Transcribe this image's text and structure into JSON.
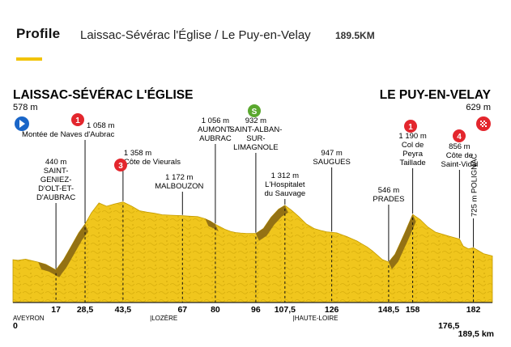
{
  "header": {
    "title": "Profile",
    "route": "Laissac-Sévérac l'Église / Le Puy-en-Velay",
    "distance": "189.5KM"
  },
  "chart_data": {
    "type": "area",
    "start": {
      "name": "LAISSAC-SÉVÉRAC L'ÉGLISE",
      "elevation": "578 m"
    },
    "finish": {
      "name": "LE PUY-EN-VELAY",
      "elevation": "629 m"
    },
    "profile": {
      "x": [
        0,
        2,
        5,
        8,
        10,
        13,
        17,
        20,
        23,
        26,
        28.5,
        31,
        34,
        37,
        40,
        43.5,
        47,
        50,
        53,
        56,
        59,
        62,
        65,
        67,
        70,
        73,
        76,
        78,
        80,
        82,
        84,
        86,
        88,
        90,
        92,
        94,
        96,
        99,
        102,
        105,
        107.5,
        110,
        113,
        116,
        119,
        122,
        124,
        126,
        128,
        130,
        132,
        134,
        136,
        138,
        140,
        142,
        144,
        146,
        148.5,
        151,
        153,
        155,
        158,
        161,
        164,
        167,
        170,
        172,
        174,
        176.5,
        178,
        180,
        182,
        184,
        186,
        189.5
      ],
      "y": [
        578,
        570,
        585,
        560,
        545,
        515,
        440,
        580,
        760,
        940,
        1058,
        1210,
        1345,
        1300,
        1330,
        1358,
        1300,
        1240,
        1220,
        1205,
        1185,
        1180,
        1175,
        1172,
        1165,
        1160,
        1130,
        1100,
        1056,
        1020,
        985,
        960,
        945,
        938,
        934,
        933,
        932,
        1000,
        1150,
        1260,
        1312,
        1250,
        1160,
        1060,
        1000,
        970,
        955,
        947,
        940,
        915,
        890,
        860,
        830,
        790,
        750,
        700,
        640,
        580,
        546,
        650,
        800,
        950,
        1190,
        1120,
        1020,
        950,
        920,
        900,
        880,
        856,
        760,
        725,
        740,
        700,
        660,
        629
      ]
    },
    "ylim": [
      0,
      1420
    ],
    "xlim": [
      0,
      189.5
    ],
    "summits": [
      {
        "km": 17,
        "elev": 440,
        "name": "SAINT-GENIEZ-D'OLT-ET-D'AUBRAC",
        "lines": [
          "440 m",
          "SAINT-",
          "GENIEZ-",
          "D'OLT-ET-",
          "D'AUBRAC"
        ]
      },
      {
        "km": 28.5,
        "elev": 1058,
        "name": "Montée de Naves d'Aubrac",
        "lines": [
          "1 058 m",
          "Montée de Naves d'Aubrac"
        ],
        "badge": "1"
      },
      {
        "km": 43.5,
        "elev": 1358,
        "name": "Côte de Vieurals",
        "lines": [
          "1 358 m",
          "Côte de Vieurals"
        ],
        "badge": "3"
      },
      {
        "km": 67,
        "elev": 1172,
        "name": "MALBOUZON",
        "lines": [
          "1 172 m",
          "MALBOUZON"
        ]
      },
      {
        "km": 80,
        "elev": 1056,
        "name": "AUMONT-AUBRAC",
        "lines": [
          "1 056 m",
          "AUMONT-",
          "AUBRAC"
        ]
      },
      {
        "km": 96,
        "elev": 932,
        "name": "SAINT-ALBAN-SUR-LIMAGNOLE",
        "lines": [
          "932 m",
          "SAINT-ALBAN-",
          "SUR-",
          "LIMAGNOLE"
        ],
        "badge": "S"
      },
      {
        "km": 107.5,
        "elev": 1312,
        "name": "L'Hospitalet du Sauvage",
        "lines": [
          "1 312 m",
          "L'Hospitalet",
          "du Sauvage"
        ]
      },
      {
        "km": 126,
        "elev": 947,
        "name": "SAUGUES",
        "lines": [
          "947 m",
          "SAUGUES"
        ]
      },
      {
        "km": 148.5,
        "elev": 546,
        "name": "PRADES",
        "lines": [
          "546 m",
          "PRADES"
        ]
      },
      {
        "km": 158,
        "elev": 1190,
        "name": "Col de Peyra Taillade",
        "lines": [
          "1 190 m",
          "Col de",
          "Peyra",
          "Taillade"
        ],
        "badge": "1"
      },
      {
        "km": 176.5,
        "elev": 856,
        "name": "Côte de Saint-Vidal",
        "lines": [
          "856 m",
          "Côte de",
          "Saint-Vidal"
        ],
        "badge": "4"
      },
      {
        "km": 182,
        "elev": 725,
        "name": "POLIGNAC",
        "lines": [
          "725 m",
          "POLIGNAC"
        ]
      }
    ],
    "climbs": [
      {
        "from": 10,
        "to": 28.5
      },
      {
        "from": 76,
        "to": 80
      },
      {
        "from": 96,
        "to": 107.5
      },
      {
        "from": 148.5,
        "to": 158
      }
    ],
    "km_ticks": [
      "17",
      "28,5",
      "43,5",
      "67",
      "80",
      "96",
      "107,5",
      "126",
      "148,5",
      "158",
      "182"
    ],
    "km_tick_values": [
      17,
      28.5,
      43.5,
      67,
      80,
      96,
      107.5,
      126,
      148.5,
      158,
      182
    ],
    "km_below": [
      {
        "km": 0,
        "label": "0"
      },
      {
        "km": 176.5,
        "label": "176,5"
      },
      {
        "km": 189.5,
        "label": "189,5 km"
      }
    ],
    "regions": [
      {
        "km": 0,
        "label": "AVEYRON"
      },
      {
        "km": 53.5,
        "label": "LOZÈRE"
      },
      {
        "km": 110,
        "label": "HAUTE-LOIRE"
      }
    ],
    "colors": {
      "terrain": "#f0c61d",
      "terrain_dark": "#c39a00",
      "climb": "#8c6a14",
      "cat_badge": "#e3262d",
      "sprint_badge": "#5aa82e",
      "start_badge": "#1a66c8",
      "finish_badge": "#e3262d",
      "accent": "#f2c300"
    }
  }
}
